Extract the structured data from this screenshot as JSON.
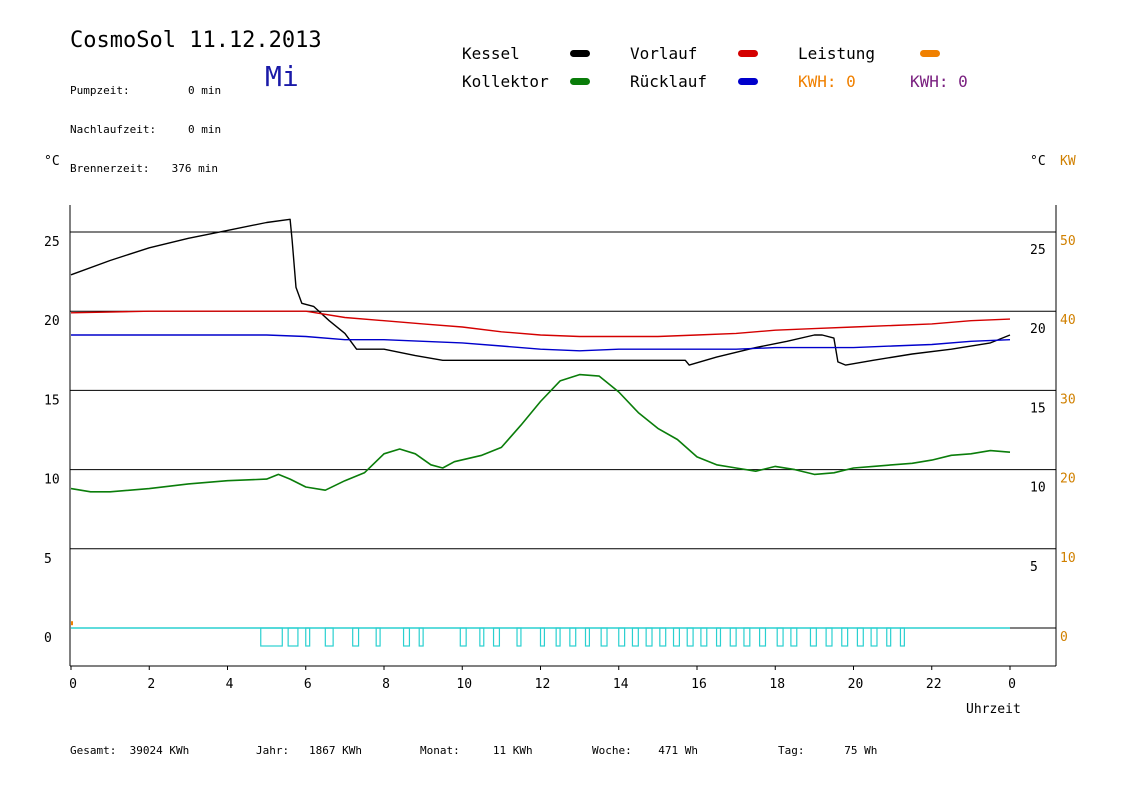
{
  "header": {
    "title": "CosmoSol 11.12.2013",
    "day": "Mi",
    "info": [
      {
        "label": "Pumpzeit:",
        "value": "0 min"
      },
      {
        "label": "Nachlaufzeit:",
        "value": "0 min"
      },
      {
        "label": "Brennerzeit:",
        "value": "376 min"
      }
    ]
  },
  "legend": {
    "kessel": "Kessel",
    "kollektor": "Kollektor",
    "vorlauf": "Vorlauf",
    "ruecklauf": "Rücklauf",
    "leistung": "Leistung",
    "kwh1": "KWH: 0",
    "kwh2": "KWH: 0"
  },
  "colors": {
    "kessel": "#000000",
    "kollektor": "#0a7d0a",
    "vorlauf": "#d40000",
    "ruecklauf": "#0000cc",
    "leistung": "#f08000",
    "kwh2": "#7a2080",
    "pump": "#2ad0d0"
  },
  "footer": [
    {
      "label": "Gesamt:",
      "value": "39024 KWh"
    },
    {
      "label": "Jahr:",
      "value": "1867 KWh"
    },
    {
      "label": "Monat:",
      "value": "11 KWh"
    },
    {
      "label": "Woche:",
      "value": "471 Wh"
    },
    {
      "label": "Tag:",
      "value": "75 Wh"
    }
  ],
  "chart_data": {
    "type": "line",
    "xlabel": "Uhrzeit",
    "ylabel_left": "°C",
    "ylabel_right": "°C",
    "ylabel_right2": "KW",
    "xlim": [
      0,
      24
    ],
    "ylim_left": [
      -3,
      27
    ],
    "x_ticks": [
      "0",
      "2",
      "4",
      "6",
      "8",
      "10",
      "12",
      "14",
      "16",
      "18",
      "20",
      "22",
      "0"
    ],
    "y_ticks_left": [
      0,
      5,
      10,
      15,
      20,
      25
    ],
    "y_ticks_right_c": [
      5,
      10,
      15,
      20,
      25
    ],
    "y_ticks_right_kw": [
      0,
      10,
      20,
      30,
      40,
      50
    ],
    "grid_y": [
      5,
      10,
      15,
      20,
      25
    ],
    "series": [
      {
        "name": "Kessel",
        "key": "kessel",
        "x": [
          0,
          1,
          2,
          3,
          4,
          5,
          5.6,
          5.65,
          5.75,
          5.9,
          6.2,
          6.6,
          7.0,
          7.3,
          8.0,
          8.8,
          9.5,
          11.0,
          13.0,
          15.0,
          15.7,
          15.8,
          16.5,
          17.5,
          18.3,
          19.0,
          19.2,
          19.5,
          19.6,
          19.8,
          20.5,
          21.5,
          22.5,
          23.5,
          24
        ],
        "y": [
          22.3,
          23.2,
          24.0,
          24.6,
          25.1,
          25.6,
          25.8,
          24.5,
          21.5,
          20.5,
          20.3,
          19.4,
          18.6,
          17.6,
          17.6,
          17.2,
          16.9,
          16.9,
          16.9,
          16.9,
          16.9,
          16.6,
          17.1,
          17.7,
          18.1,
          18.5,
          18.5,
          18.3,
          16.8,
          16.6,
          16.9,
          17.3,
          17.6,
          18.0,
          18.5
        ]
      },
      {
        "name": "Vorlauf",
        "key": "vorlauf",
        "x": [
          0,
          2,
          4,
          5,
          6,
          7,
          8,
          9,
          10,
          11,
          12,
          13,
          14,
          15,
          16,
          17,
          18,
          19,
          20,
          21,
          22,
          23,
          24
        ],
        "y": [
          19.9,
          20.0,
          20.0,
          20.0,
          20.0,
          19.6,
          19.4,
          19.2,
          19.0,
          18.7,
          18.5,
          18.4,
          18.4,
          18.4,
          18.5,
          18.6,
          18.8,
          18.9,
          19.0,
          19.1,
          19.2,
          19.4,
          19.5
        ]
      },
      {
        "name": "Rücklauf",
        "key": "ruecklauf",
        "x": [
          0,
          2,
          4,
          5,
          6,
          7,
          8,
          9,
          10,
          11,
          12,
          13,
          14,
          15,
          16,
          17,
          18,
          19,
          20,
          21,
          22,
          23,
          24
        ],
        "y": [
          18.5,
          18.5,
          18.5,
          18.5,
          18.4,
          18.2,
          18.2,
          18.1,
          18.0,
          17.8,
          17.6,
          17.5,
          17.6,
          17.6,
          17.6,
          17.6,
          17.7,
          17.7,
          17.7,
          17.8,
          17.9,
          18.1,
          18.2
        ]
      },
      {
        "name": "Kollektor",
        "key": "kollektor",
        "x": [
          0,
          0.5,
          1,
          2,
          3,
          4,
          5,
          5.3,
          5.6,
          6.0,
          6.5,
          7.0,
          7.5,
          8.0,
          8.4,
          8.8,
          9.2,
          9.5,
          9.8,
          10.5,
          11.0,
          11.5,
          12.0,
          12.5,
          13.0,
          13.5,
          14.0,
          14.5,
          15.0,
          15.5,
          16.0,
          16.5,
          17.0,
          17.5,
          18.0,
          18.5,
          19.0,
          19.5,
          20.0,
          20.5,
          21.0,
          21.5,
          22.0,
          22.5,
          23.0,
          23.5,
          24
        ],
        "y": [
          8.8,
          8.6,
          8.6,
          8.8,
          9.1,
          9.3,
          9.4,
          9.7,
          9.4,
          8.9,
          8.7,
          9.3,
          9.8,
          11.0,
          11.3,
          11.0,
          10.3,
          10.1,
          10.5,
          10.9,
          11.4,
          12.8,
          14.3,
          15.6,
          16.0,
          15.9,
          14.9,
          13.6,
          12.6,
          11.9,
          10.8,
          10.3,
          10.1,
          9.9,
          10.2,
          10.0,
          9.7,
          9.8,
          10.1,
          10.2,
          10.3,
          10.4,
          10.6,
          10.9,
          11.0,
          11.2,
          11.1
        ]
      },
      {
        "name": "Leistung",
        "key": "leistung",
        "x": [
          0,
          0.05
        ],
        "y": [
          0.3,
          0.3
        ]
      }
    ],
    "pump_pulses_h": [
      [
        4.85,
        5.4
      ],
      [
        5.55,
        5.8
      ],
      [
        6.0,
        6.1
      ],
      [
        6.5,
        6.7
      ],
      [
        7.2,
        7.35
      ],
      [
        7.8,
        7.9
      ],
      [
        8.5,
        8.65
      ],
      [
        8.9,
        9.0
      ],
      [
        9.95,
        10.1
      ],
      [
        10.45,
        10.55
      ],
      [
        10.8,
        10.95
      ],
      [
        11.4,
        11.5
      ],
      [
        12.0,
        12.1
      ],
      [
        12.4,
        12.5
      ],
      [
        12.75,
        12.9
      ],
      [
        13.15,
        13.25
      ],
      [
        13.55,
        13.7
      ],
      [
        14.0,
        14.15
      ],
      [
        14.35,
        14.5
      ],
      [
        14.7,
        14.85
      ],
      [
        15.05,
        15.2
      ],
      [
        15.4,
        15.55
      ],
      [
        15.75,
        15.9
      ],
      [
        16.1,
        16.25
      ],
      [
        16.5,
        16.6
      ],
      [
        16.85,
        17.0
      ],
      [
        17.2,
        17.35
      ],
      [
        17.6,
        17.75
      ],
      [
        18.05,
        18.2
      ],
      [
        18.4,
        18.55
      ],
      [
        18.9,
        19.05
      ],
      [
        19.3,
        19.45
      ],
      [
        19.7,
        19.85
      ],
      [
        20.1,
        20.25
      ],
      [
        20.45,
        20.6
      ],
      [
        20.85,
        20.95
      ],
      [
        21.2,
        21.3
      ]
    ]
  }
}
